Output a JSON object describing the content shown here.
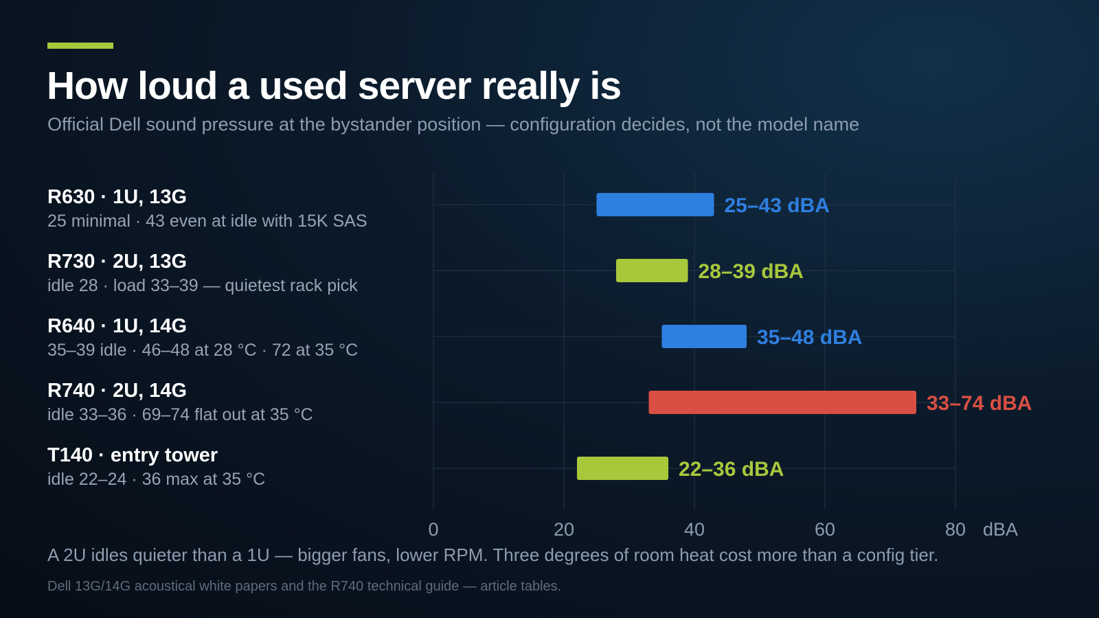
{
  "title": "How loud a used server really is",
  "subtitle": "Official Dell sound pressure at the bystander position — configuration decides, not the model name",
  "colors": {
    "accent": "#a8c83c",
    "blue": "#2f7fe0",
    "green": "#a8c83c",
    "red": "#d94f43",
    "grid": "#243447",
    "tick": "#8d9db0"
  },
  "rows": [
    {
      "name": "R630 · 1U, 13G",
      "detail": "25 minimal · 43 even at idle with 15K SAS"
    },
    {
      "name": "R730 · 2U, 13G",
      "detail": "idle 28 · load 33–39 — quietest rack pick"
    },
    {
      "name": "R640 · 1U, 14G",
      "detail": "35–39 idle · 46–48 at 28 °C · 72 at 35 °C"
    },
    {
      "name": "R740 · 2U, 14G",
      "detail": "idle 33–36 · 69–74 flat out at 35 °C"
    },
    {
      "name": "T140 · entry tower",
      "detail": "idle 22–24 · 36 max at 35 °C"
    }
  ],
  "chart_data": {
    "type": "bar",
    "orientation": "horizontal-range",
    "categories": [
      "R630",
      "R730",
      "R640",
      "R740",
      "T140"
    ],
    "ranges": [
      {
        "low": 25,
        "high": 43,
        "label": "25–43 dBA",
        "color": "blue"
      },
      {
        "low": 28,
        "high": 39,
        "label": "28–39 dBA",
        "color": "green"
      },
      {
        "low": 35,
        "high": 48,
        "label": "35–48 dBA",
        "color": "blue"
      },
      {
        "low": 33,
        "high": 74,
        "label": "33–74 dBA",
        "color": "red"
      },
      {
        "low": 22,
        "high": 36,
        "label": "22–36 dBA",
        "color": "green"
      }
    ],
    "xlim": [
      0,
      80
    ],
    "xticks": [
      "0",
      "20",
      "40",
      "60",
      "80"
    ],
    "xunit": "dBA",
    "grid": true
  },
  "footnote": "A 2U idles quieter than a 1U — bigger fans, lower RPM. Three degrees of room heat cost more than a config tier.",
  "source": "Dell 13G/14G acoustical white papers and the R740 technical guide — article tables."
}
